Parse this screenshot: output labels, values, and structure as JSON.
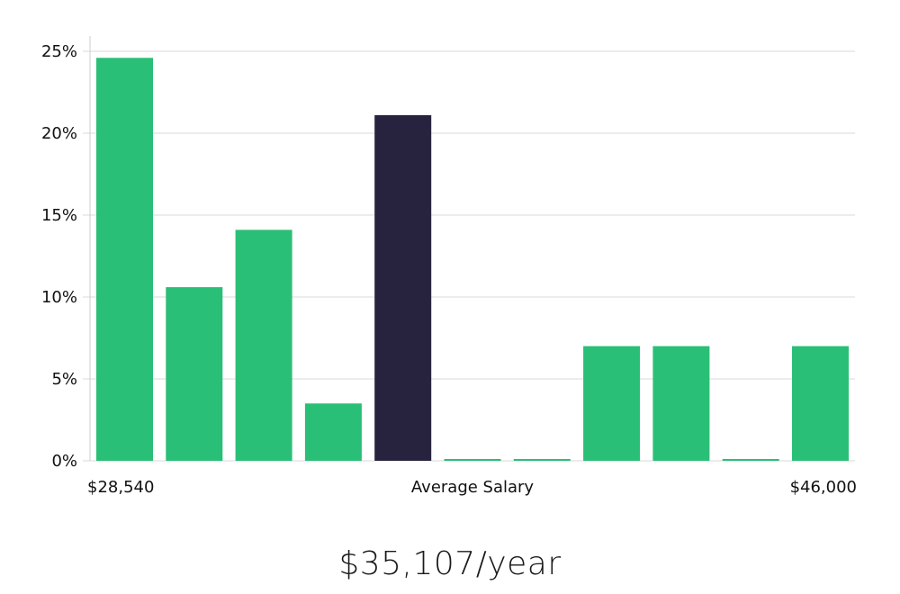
{
  "colors": {
    "bar": "#2abf76",
    "highlight": "#27233f",
    "grid": "#d9d9d9",
    "axis": "#cccccc"
  },
  "headline": "$35,107/year",
  "chart_data": {
    "type": "bar",
    "title": "",
    "xlabel": "",
    "ylabel": "",
    "ylim": [
      0,
      25
    ],
    "y_ticks": [
      0,
      5,
      10,
      15,
      20,
      25
    ],
    "y_tick_labels": [
      "0%",
      "5%",
      "10%",
      "15%",
      "20%",
      "25%"
    ],
    "values": [
      24.6,
      10.6,
      14.1,
      3.5,
      21.1,
      0,
      0,
      7.0,
      7.0,
      0,
      7.0
    ],
    "highlight_index": 4,
    "x_labels": {
      "left": "$28,540",
      "center": "Average Salary",
      "right": "$46,000"
    },
    "grid": true
  }
}
